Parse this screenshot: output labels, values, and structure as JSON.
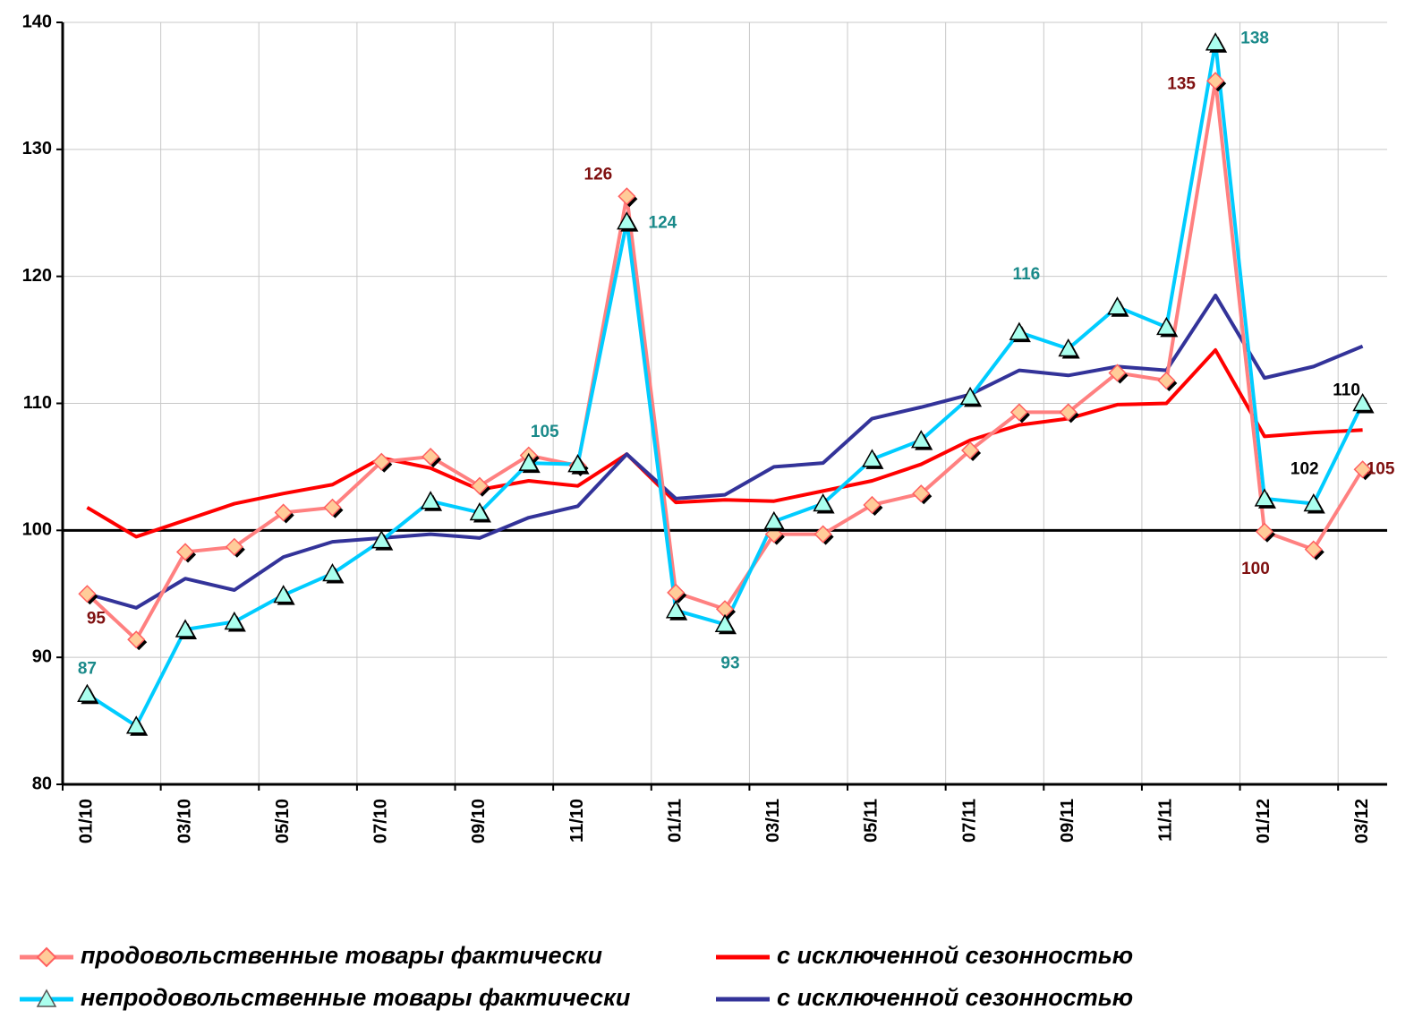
{
  "chart_data": {
    "type": "line",
    "categories": [
      "01/10",
      null,
      "03/10",
      null,
      "05/10",
      null,
      "07/10",
      null,
      "09/10",
      null,
      "11/10",
      null,
      "01/11",
      null,
      "03/11",
      null,
      "05/11",
      null,
      "07/11",
      null,
      "09/11",
      null,
      "11/11",
      null,
      "01/12",
      null,
      "03/12"
    ],
    "ylim": [
      80,
      140
    ],
    "yticks": [
      80,
      90,
      100,
      110,
      120,
      130,
      140
    ],
    "grid": true,
    "axis_cross": 100,
    "series": [
      {
        "name": "продовольственные товары фактически",
        "color": "#ff8080",
        "marker": "diamond",
        "label_color": "#7f1010",
        "values": [
          95.0,
          91.4,
          98.3,
          98.7,
          101.4,
          101.8,
          105.4,
          105.8,
          103.5,
          105.9,
          105.1,
          126.3,
          95.1,
          93.8,
          99.7,
          99.7,
          102.0,
          102.9,
          106.3,
          109.3,
          109.3,
          112.4,
          111.8,
          135.4,
          99.9,
          98.5,
          104.8
        ],
        "value_labels": [
          "95",
          null,
          null,
          null,
          null,
          null,
          null,
          null,
          null,
          null,
          null,
          "126",
          null,
          null,
          null,
          null,
          null,
          null,
          null,
          null,
          null,
          null,
          null,
          "135",
          "100",
          null,
          "105"
        ]
      },
      {
        "name": "с исключенной сезонностью",
        "color": "#ff0000",
        "marker": null,
        "values": [
          101.8,
          99.5,
          100.8,
          102.1,
          102.9,
          103.6,
          105.7,
          104.9,
          103.2,
          103.9,
          103.5,
          106.0,
          102.2,
          102.4,
          102.3,
          103.1,
          103.9,
          105.2,
          107.1,
          108.3,
          108.8,
          109.9,
          110.0,
          114.2,
          107.4,
          107.7,
          107.9
        ]
      },
      {
        "name": "непродовольственные товары фактически",
        "color": "#00ccff",
        "marker": "triangle",
        "label_color": "#1a8a8a",
        "values": [
          87.1,
          84.6,
          92.2,
          92.8,
          94.9,
          96.6,
          99.2,
          102.3,
          101.4,
          105.3,
          105.2,
          124.3,
          93.7,
          92.6,
          100.7,
          102.1,
          105.6,
          107.1,
          110.5,
          115.6,
          114.3,
          117.6,
          116.0,
          138.4,
          102.5,
          102.1,
          110.0
        ],
        "value_labels": [
          "87",
          null,
          null,
          null,
          null,
          null,
          null,
          null,
          null,
          "105",
          null,
          "124",
          null,
          "93",
          null,
          null,
          null,
          null,
          null,
          "116",
          null,
          null,
          null,
          "138",
          null,
          "102",
          "110"
        ]
      },
      {
        "name": "с исключенной сезонностью",
        "color": "#333399",
        "marker": null,
        "values": [
          95.0,
          93.9,
          96.2,
          95.3,
          97.9,
          99.1,
          99.4,
          99.7,
          99.4,
          101.0,
          101.9,
          106.0,
          102.5,
          102.8,
          105.0,
          105.3,
          108.8,
          109.7,
          110.7,
          112.6,
          112.2,
          112.9,
          112.6,
          118.5,
          112.0,
          112.9,
          114.5
        ]
      }
    ]
  }
}
